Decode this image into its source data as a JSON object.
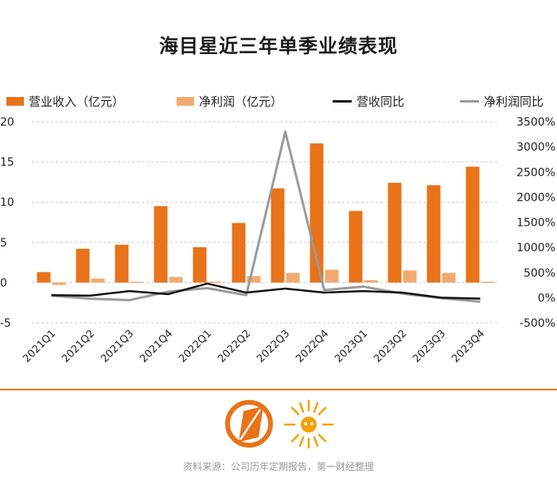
{
  "header": {
    "title": "海目星近三年单季业绩表现"
  },
  "legend": [
    {
      "label": "营业收入（亿元）",
      "kind": "bar",
      "color": "#e8731a"
    },
    {
      "label": "净利润（亿元）",
      "kind": "bar",
      "color": "#f2aa72"
    },
    {
      "label": "营收同比",
      "kind": "line",
      "color": "#111111"
    },
    {
      "label": "净利润同比",
      "kind": "line",
      "color": "#9a9a9a"
    }
  ],
  "chart_data": {
    "type": "bar",
    "title": "海目星近三年单季业绩表现",
    "categories": [
      "2021Q1",
      "2021Q2",
      "2021Q3",
      "2021Q4",
      "2022Q1",
      "2022Q2",
      "2022Q3",
      "2022Q4",
      "2023Q1",
      "2023Q2",
      "2023Q3",
      "2023Q4"
    ],
    "left_axis": {
      "ylim": [
        -5,
        20
      ],
      "ticks": [
        "-5",
        "0",
        "5",
        "10",
        "15",
        "20"
      ]
    },
    "right_axis": {
      "ylim": [
        -500,
        3500
      ],
      "ticks": [
        "-500%",
        "0%",
        "500%",
        "1000%",
        "1500%",
        "2000%",
        "2500%",
        "3000%",
        "3500%"
      ]
    },
    "series": [
      {
        "name": "营业收入（亿元）",
        "kind": "bar",
        "axis": "left",
        "color": "#e8731a",
        "values": [
          1.3,
          4.2,
          4.7,
          9.5,
          4.4,
          7.4,
          11.7,
          17.3,
          8.9,
          12.4,
          12.1,
          14.4
        ]
      },
      {
        "name": "净利润（亿元）",
        "kind": "bar",
        "axis": "left",
        "color": "#f2aa72",
        "values": [
          -0.3,
          0.5,
          0.1,
          0.7,
          0.1,
          0.8,
          1.2,
          1.6,
          0.3,
          1.5,
          1.2,
          0.1
        ]
      },
      {
        "name": "营收同比",
        "kind": "line",
        "axis": "right",
        "color": "#111111",
        "values": [
          50,
          40,
          130,
          70,
          280,
          100,
          180,
          100,
          130,
          100,
          0,
          -20
        ]
      },
      {
        "name": "净利润同比",
        "kind": "line",
        "axis": "right",
        "color": "#9a9a9a",
        "values": [
          40,
          -20,
          -50,
          120,
          190,
          50,
          3300,
          150,
          220,
          80,
          -10,
          -80
        ]
      }
    ]
  },
  "footer": {
    "source": "资料来源：公司历年定期报告，第一财经整理"
  }
}
